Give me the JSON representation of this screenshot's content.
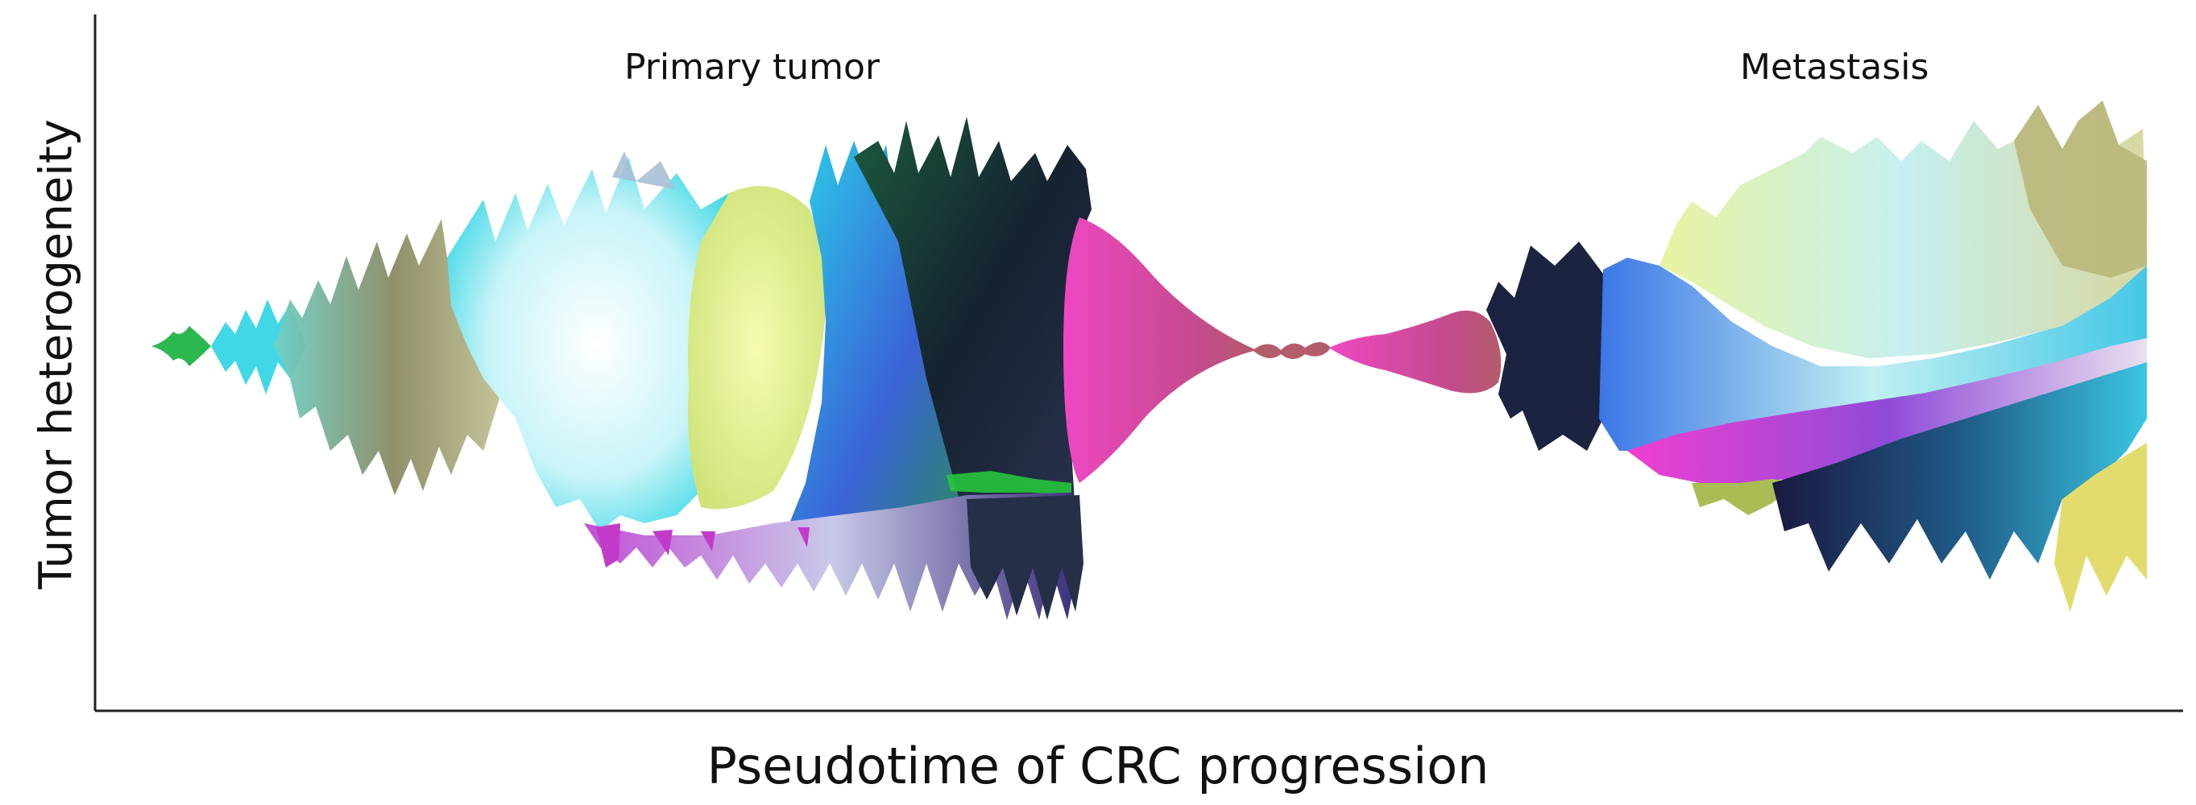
{
  "labels": {
    "primary": "Primary tumor",
    "metastasis": "Metastasis",
    "x_axis": "Pseudotime of CRC progression",
    "y_axis": "Tumor heterogeneity"
  },
  "colors": {
    "axis": "#222222",
    "founder_green": "#2db84f",
    "cyan": "#36d6e6",
    "olive": "#9a9a66",
    "pale_yellow": "#eef58a",
    "blue": "#3566e0",
    "dark_green": "#1d4a36",
    "magenta": "#e23fb7",
    "navy": "#1e2a52",
    "mauve": "#b85a7a"
  }
}
